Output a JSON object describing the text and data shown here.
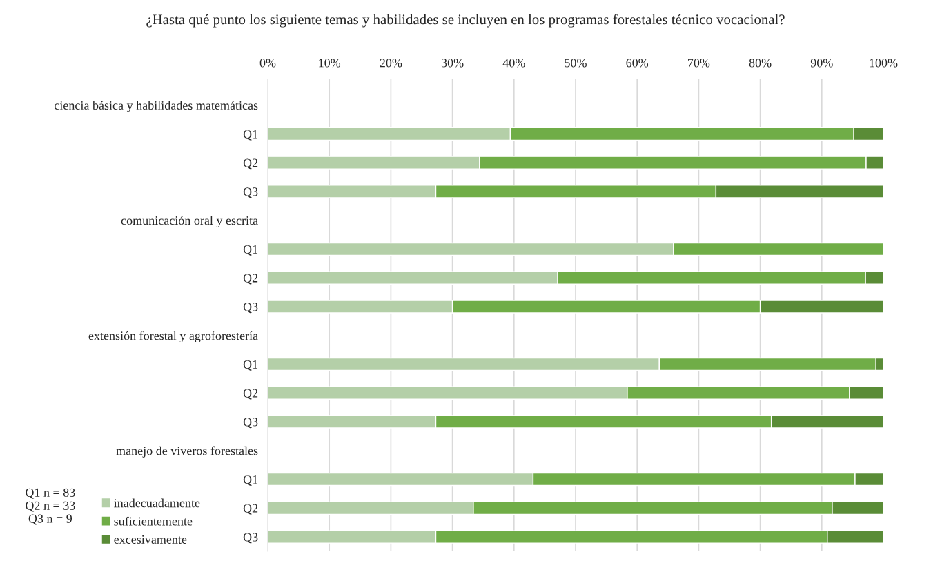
{
  "chart_data": {
    "type": "bar",
    "orientation": "horizontal",
    "stacked": true,
    "title": "¿Hasta qué punto los siguiente temas y habilidades se incluyen en los programas forestales técnico vocacional?",
    "categories": [
      "ciencia básica y habilidades matemáticas",
      "Q1",
      "Q2",
      "Q3",
      "comunicación oral y escrita",
      "Q1",
      "Q2",
      "Q3",
      "extensión forestal y agroforestería",
      "Q1",
      "Q2",
      "Q3",
      "manejo de viveros forestales",
      "Q1",
      "Q2",
      "Q3"
    ],
    "series": [
      {
        "name": "inadecuadamente",
        "color": "#b4cfa8",
        "values": [
          null,
          39.4,
          34.4,
          27.3,
          null,
          65.9,
          47.1,
          30,
          null,
          63.6,
          58.4,
          27.3,
          null,
          43.1,
          33.4,
          27.3
        ]
      },
      {
        "name": "suficientemente",
        "color": "#70ad47",
        "values": [
          null,
          55.8,
          62.8,
          45.5,
          null,
          34.1,
          50,
          50,
          null,
          35.2,
          36.1,
          54.5,
          null,
          52.3,
          58.3,
          63.6
        ]
      },
      {
        "name": "excesivamente",
        "color": "#5a8c37",
        "values": [
          null,
          4.8,
          2.8,
          27.2,
          null,
          null,
          2.9,
          20,
          null,
          1.2,
          5.5,
          18.2,
          null,
          4.6,
          8.3,
          9.1
        ]
      }
    ],
    "xlim": [
      0,
      100
    ],
    "xticks": [
      {
        "value": 0,
        "label": "0%"
      },
      {
        "value": 10,
        "label": "10%"
      },
      {
        "value": 20,
        "label": "20%"
      },
      {
        "value": 30,
        "label": "30%"
      },
      {
        "value": 40,
        "label": "40%"
      },
      {
        "value": 50,
        "label": "50%"
      },
      {
        "value": 60,
        "label": "60%"
      },
      {
        "value": 70,
        "label": "70%"
      },
      {
        "value": 80,
        "label": "80%"
      },
      {
        "value": 90,
        "label": "90%"
      },
      {
        "value": 100,
        "label": "100%"
      }
    ],
    "grid": "x",
    "legend": "bottom left",
    "annotations": [
      "Q1 n = 83\nQ2 n = 33\nQ3 n = 9"
    ]
  }
}
